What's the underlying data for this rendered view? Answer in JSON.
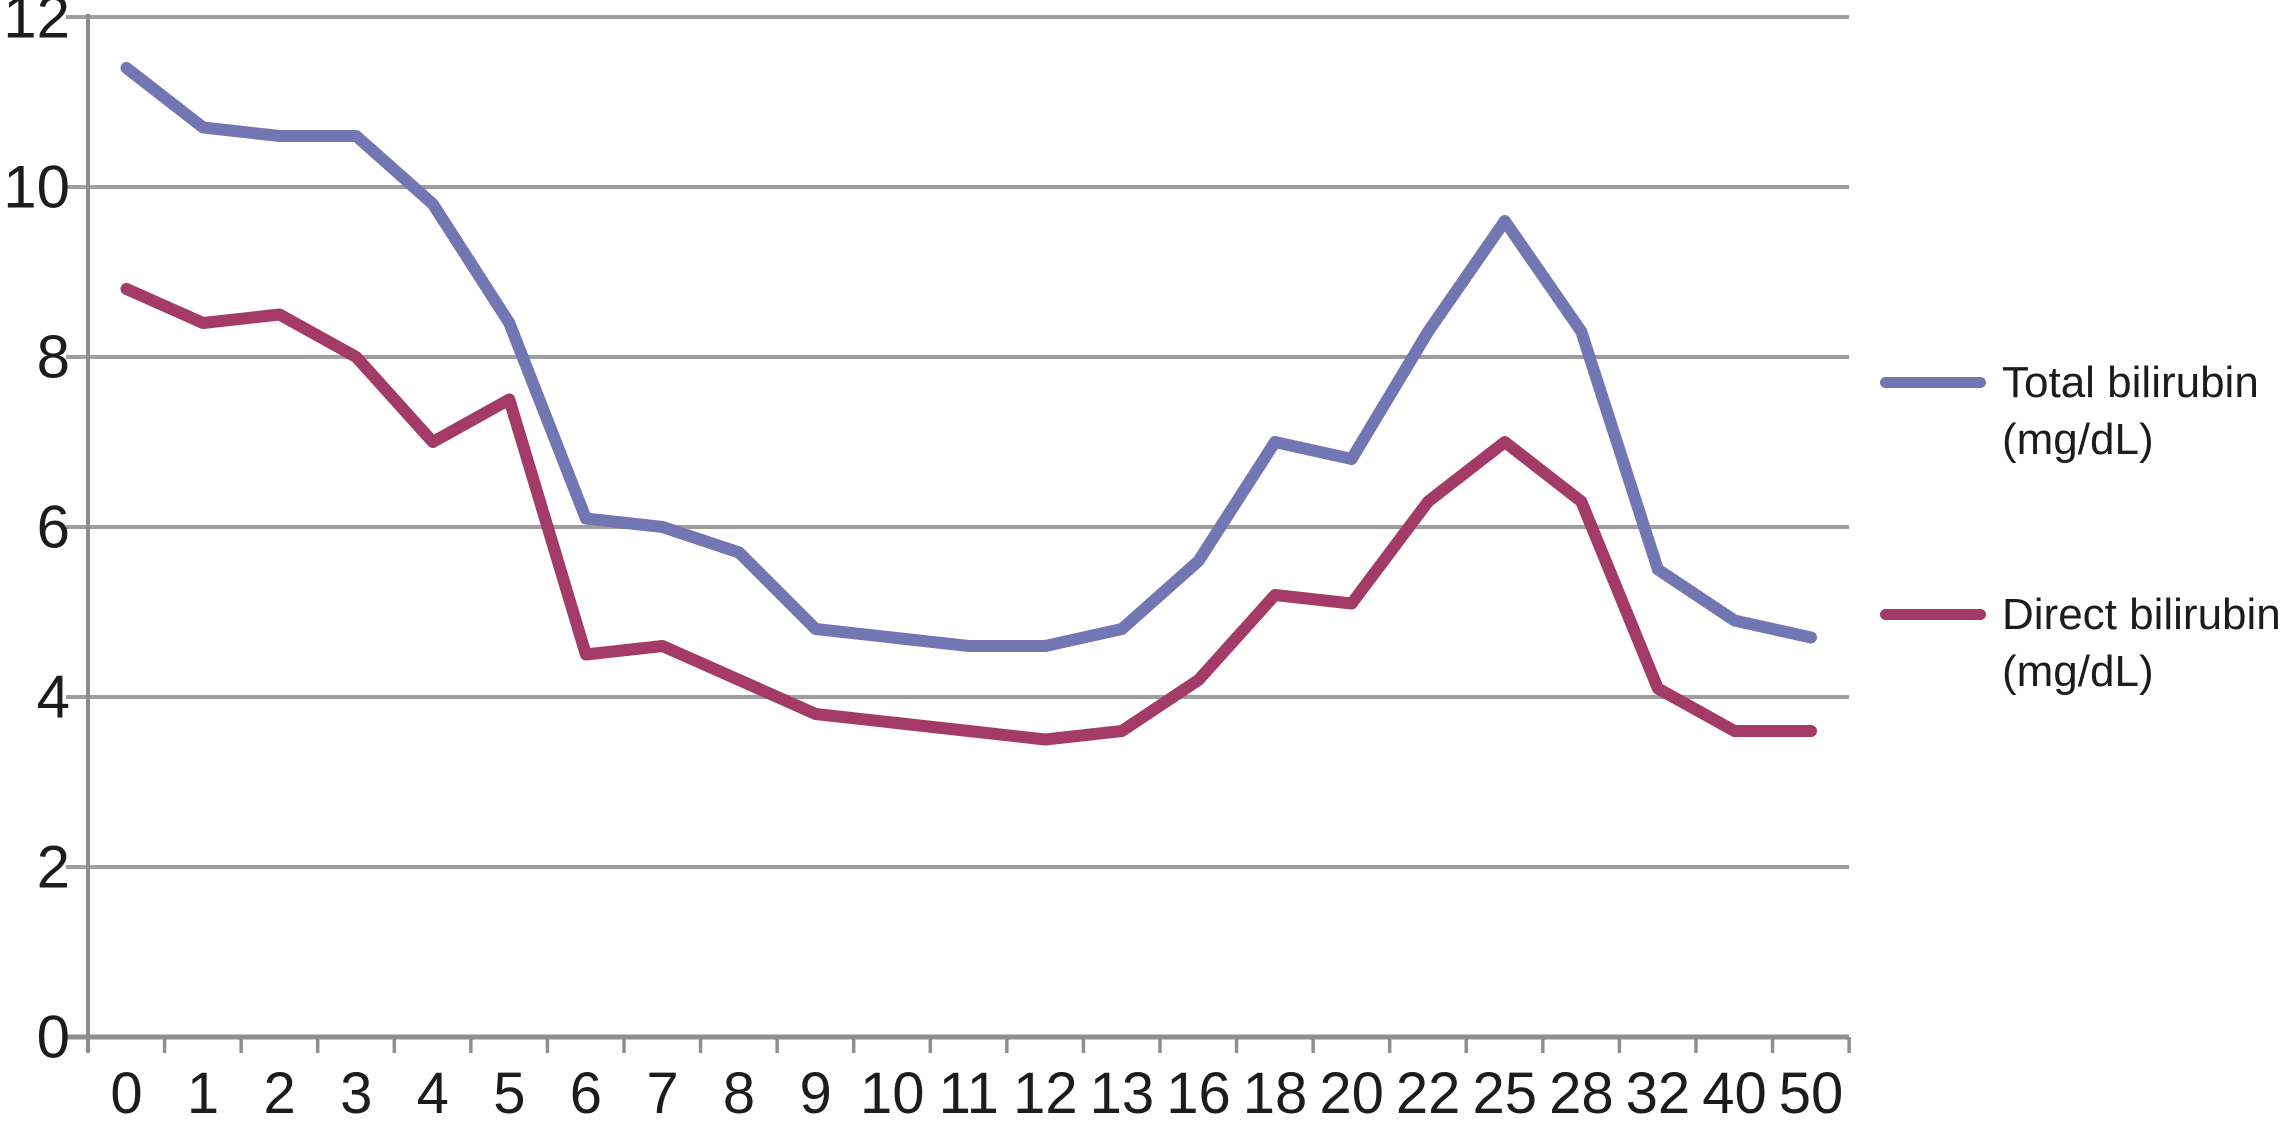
{
  "chart_data": {
    "type": "line",
    "title": "",
    "xlabel": "",
    "ylabel": "",
    "categories": [
      "0",
      "1",
      "2",
      "3",
      "4",
      "5",
      "6",
      "7",
      "8",
      "9",
      "10",
      "11",
      "12",
      "13",
      "16",
      "18",
      "20",
      "22",
      "25",
      "28",
      "32",
      "40",
      "50"
    ],
    "series": [
      {
        "name": "Total bilirubin (mg/dL)",
        "legend_lines": [
          "Total bilirubin",
          "(mg/dL)"
        ],
        "color": "#7276B2",
        "values": [
          11.4,
          10.7,
          10.6,
          10.6,
          9.8,
          8.4,
          6.1,
          6.0,
          5.7,
          4.8,
          4.7,
          4.6,
          4.6,
          4.8,
          5.6,
          7.0,
          6.8,
          8.3,
          9.6,
          8.3,
          5.5,
          4.9,
          4.7
        ]
      },
      {
        "name": "Direct bilirubin (mg/dL)",
        "legend_lines": [
          "Direct bilirubin",
          "(mg/dL)"
        ],
        "color": "#A33A68",
        "values": [
          8.8,
          8.4,
          8.5,
          8.0,
          7.0,
          7.5,
          4.5,
          4.6,
          4.2,
          3.8,
          3.7,
          3.6,
          3.5,
          3.6,
          4.2,
          5.2,
          5.1,
          6.3,
          7.0,
          6.3,
          4.1,
          3.6,
          3.6
        ]
      }
    ],
    "y_axis": {
      "min": 0,
      "max": 12,
      "step": 2,
      "tick_labels": [
        "0",
        "2",
        "4",
        "6",
        "8",
        "10",
        "12"
      ]
    },
    "grid": true,
    "legend_position": "right"
  },
  "styles": {
    "grid_color": "#9E9E9E",
    "axis_color": "#8E8E8E",
    "label_color": "#1C1C1C",
    "background": "#FFFFFF"
  }
}
